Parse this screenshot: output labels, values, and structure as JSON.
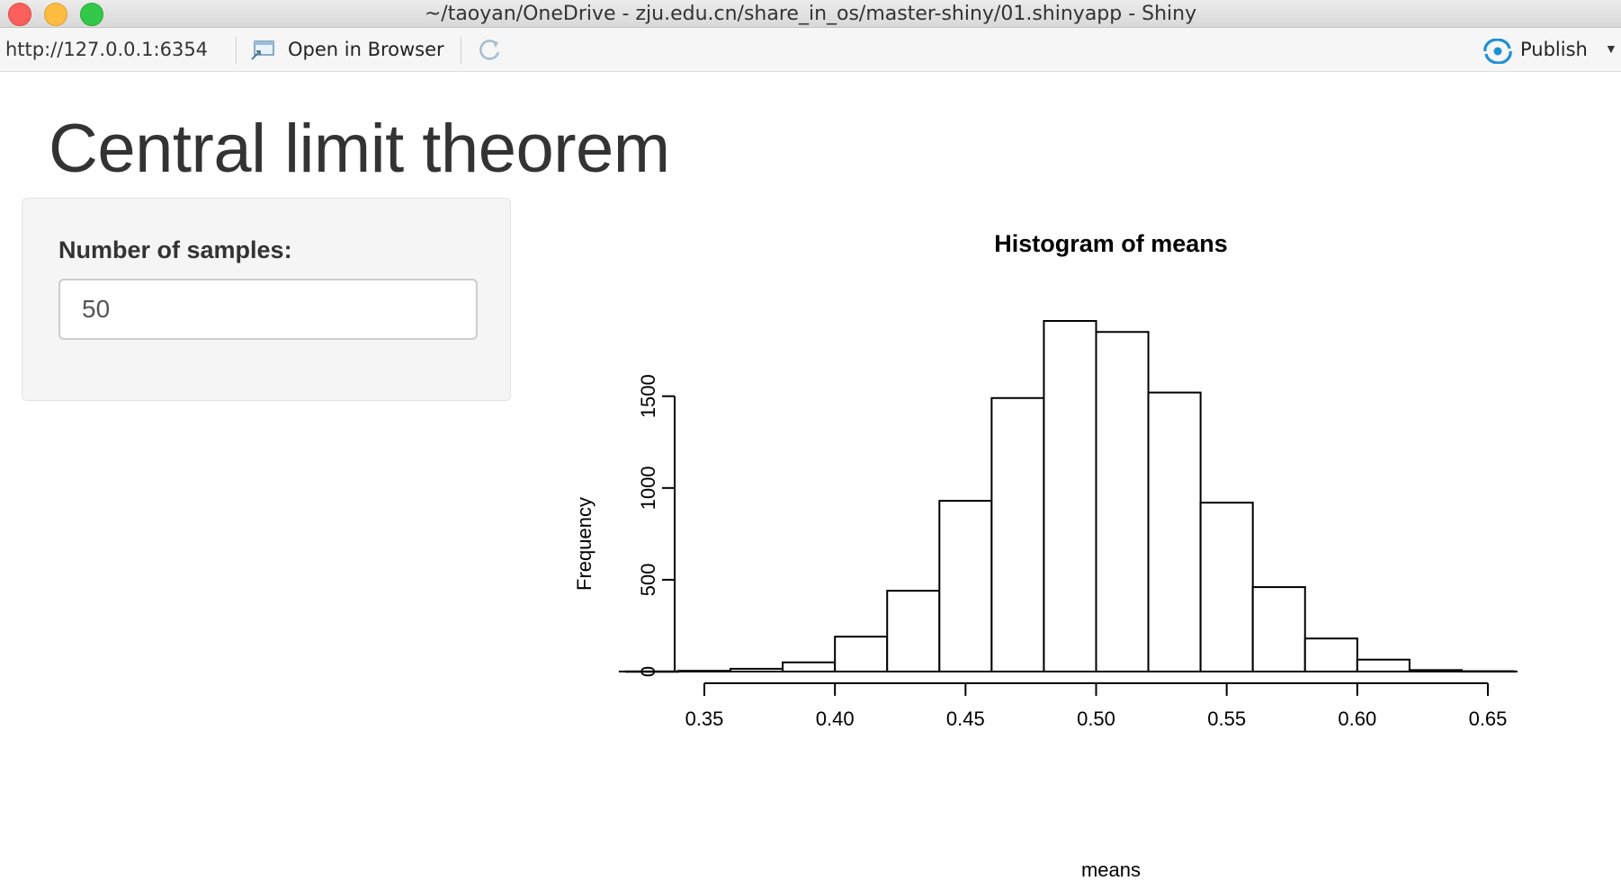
{
  "window": {
    "title": "~/taoyan/OneDrive - zju.edu.cn/share_in_os/master-shiny/01.shinyapp - Shiny"
  },
  "toolbar": {
    "url": "http://127.0.0.1:6354",
    "open_in_browser_label": "Open in Browser",
    "publish_label": "Publish",
    "icons": [
      "open-browser-icon",
      "refresh-icon",
      "publish-icon",
      "chevron-down-icon"
    ],
    "publish_icon_color": "#1e8fd6"
  },
  "app": {
    "title": "Central limit theorem",
    "sidebar": {
      "input_label": "Number of samples:",
      "input_value": "50"
    }
  },
  "chart_data": {
    "type": "bar",
    "title": "Histogram of means",
    "xlabel": "means",
    "ylabel": "Frequency",
    "bin_edges": [
      0.32,
      0.34,
      0.36,
      0.38,
      0.4,
      0.42,
      0.44,
      0.46,
      0.48,
      0.5,
      0.52,
      0.54,
      0.56,
      0.58,
      0.6,
      0.62,
      0.64,
      0.66
    ],
    "values": [
      1,
      4,
      15,
      50,
      190,
      440,
      930,
      1490,
      1910,
      1850,
      1520,
      920,
      460,
      180,
      65,
      8,
      2
    ],
    "xticks": [
      "0.35",
      "0.40",
      "0.45",
      "0.50",
      "0.55",
      "0.60",
      "0.65"
    ],
    "xtick_values": [
      0.35,
      0.4,
      0.45,
      0.5,
      0.55,
      0.6,
      0.65
    ],
    "yticks": [
      "0",
      "500",
      "1000",
      "1500"
    ],
    "ytick_values": [
      0,
      500,
      1000,
      1500
    ],
    "xlim": [
      0.32,
      0.66
    ],
    "ylim": [
      0,
      1910
    ]
  }
}
